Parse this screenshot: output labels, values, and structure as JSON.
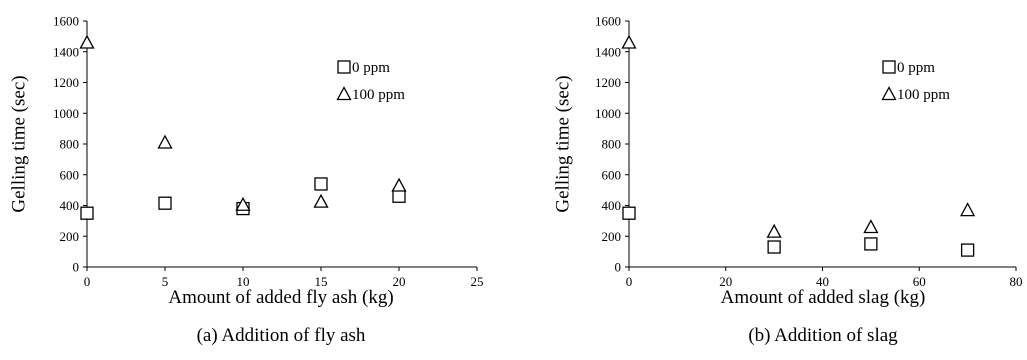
{
  "chart_data": [
    {
      "type": "scatter",
      "caption": "(a) Addition of fly ash",
      "xlabel": "Amount of added fly ash (kg)",
      "ylabel": "Gelling time (sec)",
      "xlim": [
        0,
        25
      ],
      "ylim": [
        0,
        1600
      ],
      "xticks": [
        "0",
        "5",
        "10",
        "15",
        "20",
        "25"
      ],
      "yticks": [
        "0",
        "200",
        "400",
        "600",
        "800",
        "1000",
        "1200",
        "1400",
        "1600"
      ],
      "grid": false,
      "legend_position": "top-right",
      "series": [
        {
          "name": "0 ppm",
          "marker": "square",
          "x": [
            0,
            5,
            10,
            15,
            20
          ],
          "y": [
            350,
            415,
            380,
            540,
            460
          ]
        },
        {
          "name": "100 ppm",
          "marker": "triangle",
          "x": [
            0,
            5,
            10,
            15,
            20
          ],
          "y": [
            1460,
            810,
            405,
            425,
            530
          ]
        }
      ]
    },
    {
      "type": "scatter",
      "caption": "(b) Addition of slag",
      "xlabel": "Amount of added slag (kg)",
      "ylabel": "Gelling time (sec)",
      "xlim": [
        0,
        80
      ],
      "ylim": [
        0,
        1600
      ],
      "xticks": [
        "0",
        "20",
        "40",
        "60",
        "80"
      ],
      "yticks": [
        "0",
        "200",
        "400",
        "600",
        "800",
        "1000",
        "1200",
        "1400",
        "1600"
      ],
      "grid": false,
      "legend_position": "top-right",
      "series": [
        {
          "name": "0 ppm",
          "marker": "square",
          "x": [
            0,
            30,
            50,
            70
          ],
          "y": [
            350,
            130,
            150,
            110
          ]
        },
        {
          "name": "100 ppm",
          "marker": "triangle",
          "x": [
            0,
            30,
            50,
            70
          ],
          "y": [
            1460,
            230,
            260,
            370
          ]
        }
      ]
    }
  ]
}
